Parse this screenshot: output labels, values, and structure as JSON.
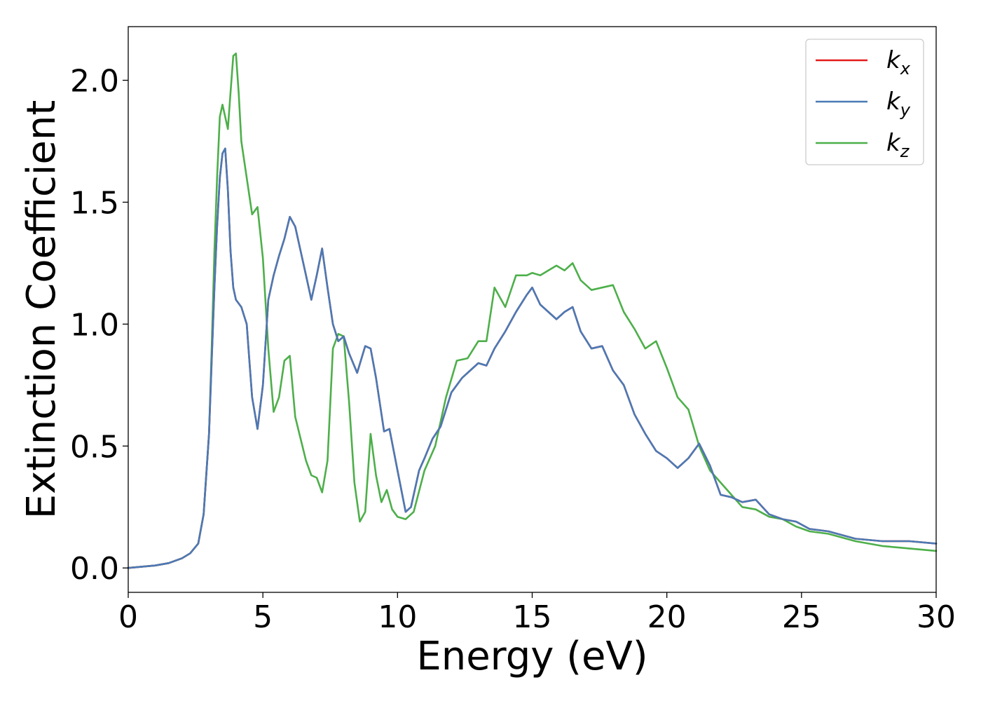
{
  "chart_data": {
    "type": "line",
    "xlabel": "Energy (eV)",
    "ylabel": "Extinction Coefficient",
    "xlim": [
      0,
      30
    ],
    "ylim": [
      -0.1,
      2.22
    ],
    "xticks": [
      0,
      5,
      10,
      15,
      20,
      25,
      30
    ],
    "xtick_labels": [
      "0",
      "5",
      "10",
      "15",
      "20",
      "25",
      "30"
    ],
    "yticks": [
      0.0,
      0.5,
      1.0,
      1.5,
      2.0
    ],
    "ytick_labels": [
      "0.0",
      "0.5",
      "1.0",
      "1.5",
      "2.0"
    ],
    "grid": false,
    "legend_position": "top-right",
    "series": [
      {
        "name": "k_x",
        "label_main": "k",
        "label_sub": "x",
        "color": "#e41a1c",
        "x": [
          0,
          1,
          1.5,
          2,
          2.3,
          2.6,
          2.8,
          3.0,
          3.1,
          3.2,
          3.3,
          3.4,
          3.5,
          3.6,
          3.7,
          3.8,
          3.9,
          4.0,
          4.2,
          4.4,
          4.5,
          4.6,
          4.8,
          5.0,
          5.2,
          5.4,
          5.6,
          5.8,
          6.0,
          6.2,
          6.4,
          6.6,
          6.8,
          7.0,
          7.2,
          7.4,
          7.6,
          7.8,
          8.0,
          8.2,
          8.5,
          8.8,
          9.0,
          9.2,
          9.5,
          9.7,
          10.0,
          10.3,
          10.5,
          10.8,
          11.0,
          11.3,
          11.6,
          12.0,
          12.4,
          12.8,
          13.0,
          13.3,
          13.6,
          14.0,
          14.4,
          14.8,
          15.0,
          15.3,
          15.6,
          15.9,
          16.2,
          16.5,
          16.8,
          17.2,
          17.6,
          18.0,
          18.4,
          18.8,
          19.2,
          19.6,
          20.0,
          20.4,
          20.8,
          21.2,
          21.6,
          22.0,
          22.4,
          22.8,
          23.3,
          23.8,
          24.3,
          24.8,
          25.3,
          26.0,
          27.0,
          28.0,
          29.0,
          30.0
        ],
        "y": [
          0,
          0.01,
          0.02,
          0.04,
          0.06,
          0.1,
          0.22,
          0.55,
          0.85,
          1.15,
          1.4,
          1.6,
          1.7,
          1.72,
          1.55,
          1.3,
          1.15,
          1.1,
          1.07,
          1.0,
          0.85,
          0.7,
          0.57,
          0.75,
          1.1,
          1.2,
          1.28,
          1.35,
          1.44,
          1.4,
          1.3,
          1.2,
          1.1,
          1.2,
          1.31,
          1.15,
          1.0,
          0.93,
          0.95,
          0.88,
          0.8,
          0.91,
          0.9,
          0.78,
          0.56,
          0.57,
          0.4,
          0.23,
          0.25,
          0.4,
          0.45,
          0.53,
          0.58,
          0.72,
          0.78,
          0.82,
          0.84,
          0.83,
          0.9,
          0.97,
          1.05,
          1.12,
          1.15,
          1.08,
          1.05,
          1.02,
          1.05,
          1.07,
          0.97,
          0.9,
          0.91,
          0.81,
          0.75,
          0.63,
          0.55,
          0.48,
          0.45,
          0.41,
          0.45,
          0.51,
          0.42,
          0.3,
          0.29,
          0.27,
          0.28,
          0.22,
          0.2,
          0.19,
          0.16,
          0.15,
          0.12,
          0.11,
          0.11,
          0.1
        ]
      },
      {
        "name": "k_y",
        "label_main": "k",
        "label_sub": "y",
        "color": "#4a7ab5",
        "x": [
          0,
          1,
          1.5,
          2,
          2.3,
          2.6,
          2.8,
          3.0,
          3.1,
          3.2,
          3.3,
          3.4,
          3.5,
          3.6,
          3.7,
          3.8,
          3.9,
          4.0,
          4.2,
          4.4,
          4.5,
          4.6,
          4.8,
          5.0,
          5.2,
          5.4,
          5.6,
          5.8,
          6.0,
          6.2,
          6.4,
          6.6,
          6.8,
          7.0,
          7.2,
          7.4,
          7.6,
          7.8,
          8.0,
          8.2,
          8.5,
          8.8,
          9.0,
          9.2,
          9.5,
          9.7,
          10.0,
          10.3,
          10.5,
          10.8,
          11.0,
          11.3,
          11.6,
          12.0,
          12.4,
          12.8,
          13.0,
          13.3,
          13.6,
          14.0,
          14.4,
          14.8,
          15.0,
          15.3,
          15.6,
          15.9,
          16.2,
          16.5,
          16.8,
          17.2,
          17.6,
          18.0,
          18.4,
          18.8,
          19.2,
          19.6,
          20.0,
          20.4,
          20.8,
          21.2,
          21.6,
          22.0,
          22.4,
          22.8,
          23.3,
          23.8,
          24.3,
          24.8,
          25.3,
          26.0,
          27.0,
          28.0,
          29.0,
          30.0
        ],
        "y": [
          0,
          0.01,
          0.02,
          0.04,
          0.06,
          0.1,
          0.22,
          0.55,
          0.85,
          1.15,
          1.4,
          1.6,
          1.7,
          1.72,
          1.55,
          1.3,
          1.15,
          1.1,
          1.07,
          1.0,
          0.85,
          0.7,
          0.57,
          0.75,
          1.1,
          1.2,
          1.28,
          1.35,
          1.44,
          1.4,
          1.3,
          1.2,
          1.1,
          1.2,
          1.31,
          1.15,
          1.0,
          0.93,
          0.95,
          0.88,
          0.8,
          0.91,
          0.9,
          0.78,
          0.56,
          0.57,
          0.4,
          0.23,
          0.25,
          0.4,
          0.45,
          0.53,
          0.58,
          0.72,
          0.78,
          0.82,
          0.84,
          0.83,
          0.9,
          0.97,
          1.05,
          1.12,
          1.15,
          1.08,
          1.05,
          1.02,
          1.05,
          1.07,
          0.97,
          0.9,
          0.91,
          0.81,
          0.75,
          0.63,
          0.55,
          0.48,
          0.45,
          0.41,
          0.45,
          0.51,
          0.42,
          0.3,
          0.29,
          0.27,
          0.28,
          0.22,
          0.2,
          0.19,
          0.16,
          0.15,
          0.12,
          0.11,
          0.11,
          0.1
        ]
      },
      {
        "name": "k_z",
        "label_main": "k",
        "label_sub": "z",
        "color": "#4daf4a",
        "x": [
          0,
          1,
          1.5,
          2,
          2.3,
          2.6,
          2.8,
          3.0,
          3.1,
          3.2,
          3.3,
          3.4,
          3.5,
          3.6,
          3.7,
          3.8,
          3.9,
          4.0,
          4.1,
          4.2,
          4.4,
          4.6,
          4.8,
          5.0,
          5.2,
          5.4,
          5.6,
          5.8,
          6.0,
          6.2,
          6.4,
          6.6,
          6.8,
          7.0,
          7.2,
          7.4,
          7.6,
          7.8,
          8.0,
          8.2,
          8.4,
          8.6,
          8.8,
          9.0,
          9.2,
          9.4,
          9.6,
          9.8,
          10.0,
          10.3,
          10.6,
          11.0,
          11.4,
          11.8,
          12.2,
          12.6,
          13.0,
          13.3,
          13.6,
          14.0,
          14.4,
          14.8,
          15.0,
          15.3,
          15.6,
          15.9,
          16.2,
          16.5,
          16.8,
          17.2,
          17.6,
          18.0,
          18.4,
          18.8,
          19.2,
          19.6,
          20.0,
          20.4,
          20.8,
          21.2,
          21.6,
          22.0,
          22.4,
          22.8,
          23.3,
          23.8,
          24.3,
          24.8,
          25.3,
          26.0,
          27.0,
          28.0,
          29.0,
          30.0
        ],
        "y": [
          0,
          0.01,
          0.02,
          0.04,
          0.06,
          0.1,
          0.22,
          0.55,
          0.9,
          1.3,
          1.6,
          1.85,
          1.9,
          1.85,
          1.8,
          1.95,
          2.1,
          2.11,
          1.95,
          1.75,
          1.6,
          1.45,
          1.48,
          1.27,
          0.9,
          0.64,
          0.7,
          0.85,
          0.87,
          0.62,
          0.53,
          0.44,
          0.38,
          0.37,
          0.31,
          0.44,
          0.9,
          0.96,
          0.95,
          0.68,
          0.35,
          0.19,
          0.23,
          0.55,
          0.38,
          0.27,
          0.32,
          0.24,
          0.21,
          0.2,
          0.23,
          0.4,
          0.5,
          0.7,
          0.85,
          0.86,
          0.93,
          0.93,
          1.15,
          1.07,
          1.2,
          1.2,
          1.21,
          1.2,
          1.22,
          1.24,
          1.22,
          1.25,
          1.18,
          1.14,
          1.15,
          1.16,
          1.05,
          0.98,
          0.9,
          0.93,
          0.82,
          0.7,
          0.65,
          0.5,
          0.4,
          0.35,
          0.3,
          0.25,
          0.24,
          0.21,
          0.2,
          0.17,
          0.15,
          0.14,
          0.11,
          0.09,
          0.08,
          0.07
        ]
      }
    ]
  }
}
